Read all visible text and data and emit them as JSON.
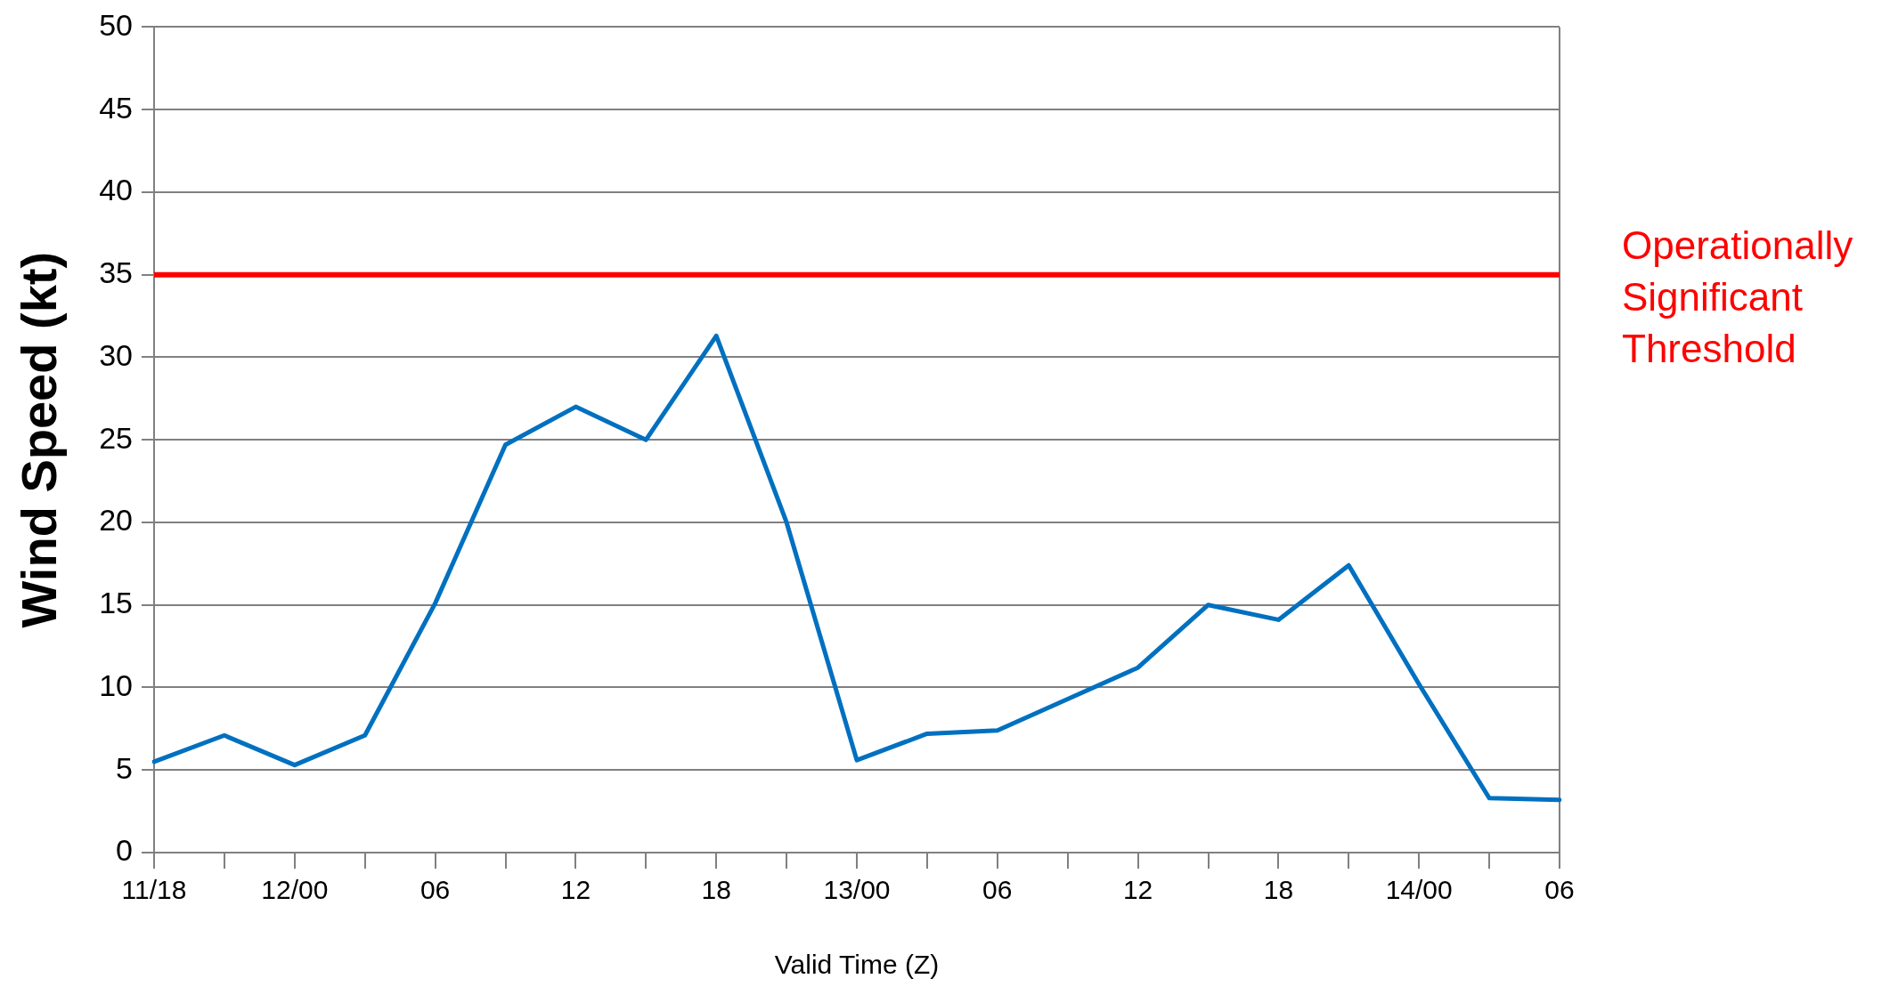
{
  "chart_data": {
    "type": "line",
    "xlabel": "Valid Time (Z)",
    "ylabel": "Wind Speed (kt)",
    "categories": [
      "11/18",
      null,
      "12/00",
      null,
      "06",
      null,
      "12",
      null,
      "18",
      null,
      "13/00",
      null,
      "06",
      null,
      "12",
      null,
      "18",
      null,
      "14/00",
      null,
      "06"
    ],
    "series": [
      {
        "color": "#0070c0",
        "values": [
          5.5,
          7.1,
          5.3,
          7.1,
          15.1,
          24.7,
          27,
          25,
          31.3,
          20,
          5.6,
          7.2,
          7.4,
          9.3,
          11.2,
          15,
          14.1,
          17.4,
          10.2,
          3.3,
          3.2
        ]
      }
    ],
    "ylim": [
      0,
      50
    ],
    "yticks": [
      0,
      5,
      10,
      15,
      20,
      25,
      30,
      35,
      40,
      45,
      50
    ],
    "grid": "y",
    "legend": false,
    "marker": "none",
    "line_style": "solid",
    "ref_lines": [
      {
        "axis": "y",
        "value": 35,
        "label": "Operationally Significant Threshold",
        "color": "#ff0000"
      }
    ]
  }
}
